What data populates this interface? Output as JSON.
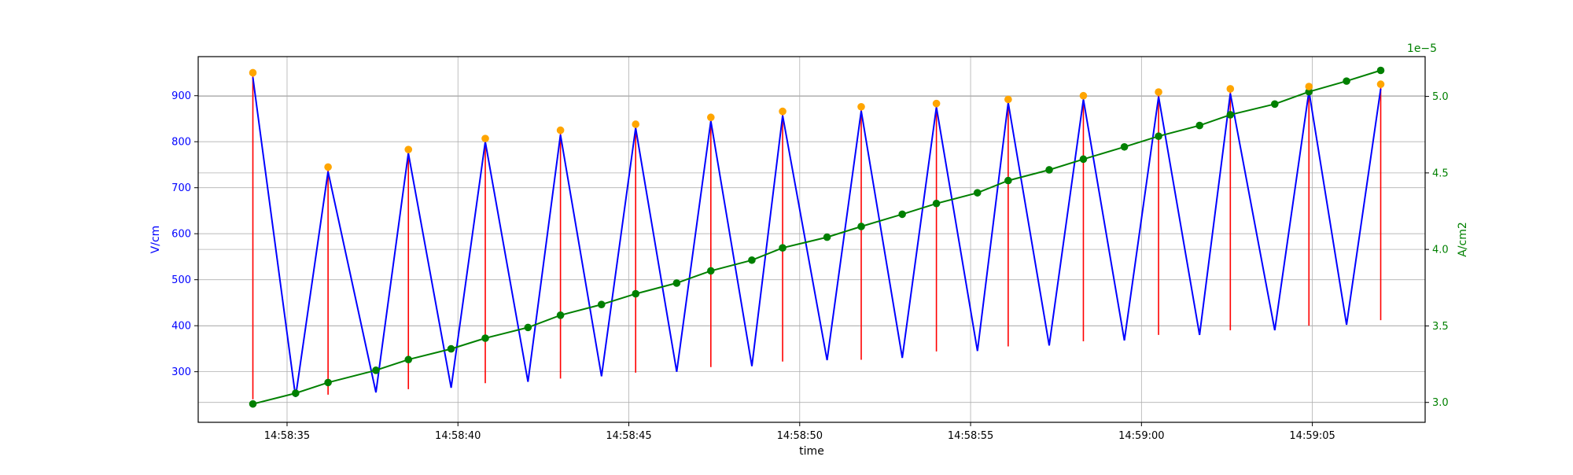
{
  "chart_data": {
    "type": "line",
    "xlabel": "time",
    "ylabel_left": "V/cm",
    "ylabel_right": "A/cm2",
    "right_axis_offset_label": "1e−5",
    "x_start": "14:58:34.0",
    "x_unit": "seconds",
    "x_ticks": [
      {
        "t": 35,
        "label": "14:58:35"
      },
      {
        "t": 40,
        "label": "14:58:40"
      },
      {
        "t": 45,
        "label": "14:58:45"
      },
      {
        "t": 50,
        "label": "14:58:50"
      },
      {
        "t": 55,
        "label": "14:58:55"
      },
      {
        "t": 60,
        "label": "14:59:00"
      },
      {
        "t": 65,
        "label": "14:59:05"
      }
    ],
    "xlim": [
      32.4,
      68.3
    ],
    "ylim_left": [
      190,
      985
    ],
    "yticks_left": [
      300,
      400,
      500,
      600,
      700,
      800,
      900
    ],
    "ylim_right": [
      2.87,
      5.26
    ],
    "yticks_right": [
      3.0,
      3.5,
      4.0,
      4.5,
      5.0
    ],
    "grid": true,
    "series": [
      {
        "name": "V/cm",
        "color": "#0000ff",
        "axis": "left",
        "x": [
          34.0,
          35.25,
          36.2,
          37.6,
          38.55,
          39.8,
          40.8,
          42.05,
          43.0,
          44.2,
          45.2,
          46.4,
          47.4,
          48.6,
          49.5,
          50.8,
          51.8,
          53.0,
          54.0,
          55.2,
          56.1,
          57.3,
          58.3,
          59.5,
          60.5,
          61.7,
          62.6,
          63.9,
          64.9,
          66.0,
          67.0
        ],
        "y": [
          940,
          245,
          735,
          255,
          775,
          265,
          800,
          278,
          815,
          290,
          830,
          300,
          845,
          312,
          857,
          325,
          867,
          330,
          875,
          345,
          885,
          357,
          892,
          368,
          898,
          380,
          905,
          390,
          910,
          402,
          915
        ]
      },
      {
        "name": "A/cm2",
        "color": "#008000",
        "axis": "right",
        "x": [
          34.0,
          35.25,
          36.2,
          37.6,
          38.55,
          39.8,
          40.8,
          42.05,
          43.0,
          44.2,
          45.2,
          46.4,
          47.4,
          48.6,
          49.5,
          50.8,
          51.8,
          53.0,
          54.0,
          55.2,
          56.1,
          57.3,
          58.3,
          59.5,
          60.5,
          61.7,
          62.6,
          63.9,
          64.9,
          66.0,
          67.0
        ],
        "y": [
          2.99,
          3.06,
          3.13,
          3.21,
          3.28,
          3.35,
          3.42,
          3.49,
          3.57,
          3.64,
          3.71,
          3.78,
          3.86,
          3.93,
          4.01,
          4.08,
          4.15,
          4.23,
          4.3,
          4.37,
          4.45,
          4.52,
          4.59,
          4.67,
          4.74,
          4.81,
          4.88,
          4.95,
          5.03,
          5.1,
          5.17
        ]
      }
    ],
    "peaks": {
      "color": "#ffa500",
      "x": [
        34.0,
        36.2,
        38.55,
        40.8,
        43.0,
        45.2,
        47.4,
        49.5,
        51.8,
        54.0,
        56.1,
        58.3,
        60.5,
        62.6,
        64.9,
        67.0
      ],
      "y": [
        950,
        745,
        783,
        807,
        825,
        838,
        853,
        866,
        876,
        883,
        892,
        900,
        908,
        915,
        920,
        925
      ]
    },
    "stems": {
      "color": "#ff0000",
      "x": [
        34.0,
        36.2,
        38.55,
        40.8,
        43.0,
        45.2,
        47.4,
        49.5,
        51.8,
        54.0,
        56.1,
        58.3,
        60.5,
        62.6,
        64.9,
        67.0
      ],
      "top": [
        950,
        745,
        783,
        807,
        825,
        838,
        853,
        866,
        876,
        883,
        892,
        900,
        908,
        915,
        920,
        925
      ],
      "bottom": [
        240,
        250,
        262,
        275,
        285,
        298,
        310,
        322,
        326,
        344,
        355,
        366,
        380,
        390,
        400,
        412
      ]
    }
  }
}
